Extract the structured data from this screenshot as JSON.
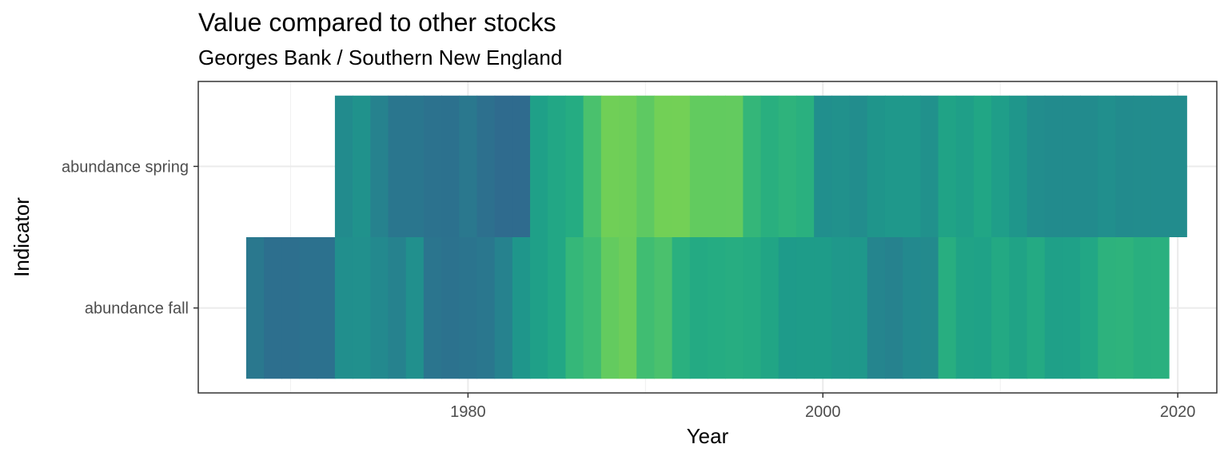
{
  "chart_data": {
    "type": "heatmap",
    "title": "Value compared to other stocks",
    "subtitle": "Georges Bank / Southern New England",
    "xlabel": "Year",
    "ylabel": "Indicator",
    "categories": [
      "abundance fall",
      "abundance spring"
    ],
    "xlim": [
      1964.8,
      2022.2
    ],
    "x_ticks": [
      1980,
      2000,
      2020
    ],
    "grid": true,
    "legend": "none",
    "series": [
      {
        "indicator": "abundance fall",
        "x": [
          1968,
          1969,
          1970,
          1971,
          1972,
          1973,
          1974,
          1975,
          1976,
          1977,
          1978,
          1979,
          1980,
          1981,
          1982,
          1983,
          1984,
          1985,
          1986,
          1987,
          1988,
          1989,
          1990,
          1991,
          1992,
          1993,
          1994,
          1995,
          1996,
          1997,
          1998,
          1999,
          2000,
          2001,
          2002,
          2003,
          2004,
          2005,
          2006,
          2007,
          2008,
          2009,
          2010,
          2011,
          2012,
          2013,
          2014,
          2015,
          2016,
          2017,
          2018,
          2019
        ],
        "colors": [
          "#2a788e",
          "#2d6f8e",
          "#2d6f8e",
          "#2c718e",
          "#2c718e",
          "#218f8d",
          "#21908d",
          "#23898e",
          "#26828e",
          "#21908d",
          "#2b758e",
          "#2c728e",
          "#2b748e",
          "#2a778e",
          "#26828e",
          "#1f968b",
          "#1fa088",
          "#22a785",
          "#35b779",
          "#3fbc73",
          "#63cb5f",
          "#6ccd5a",
          "#40bd72",
          "#4ac16d",
          "#2ab07f",
          "#24aa83",
          "#25ac82",
          "#27ad81",
          "#25ab82",
          "#21a585",
          "#1e9b8a",
          "#1e9c89",
          "#1e9c89",
          "#1f988b",
          "#1f988b",
          "#25858e",
          "#26828e",
          "#23898e",
          "#238a8d",
          "#28ae80",
          "#20a386",
          "#1fa287",
          "#23a983",
          "#20a386",
          "#24aa83",
          "#1fa088",
          "#1fa188",
          "#22a785",
          "#2db27d",
          "#2eb37c",
          "#29af7f",
          "#2ab07f"
        ]
      },
      {
        "indicator": "abundance spring",
        "x": [
          1973,
          1974,
          1975,
          1976,
          1977,
          1978,
          1979,
          1980,
          1981,
          1982,
          1983,
          1984,
          1985,
          1986,
          1987,
          1988,
          1989,
          1990,
          1991,
          1992,
          1993,
          1994,
          1995,
          1996,
          1997,
          1998,
          1999,
          2000,
          2001,
          2002,
          2003,
          2004,
          2005,
          2006,
          2007,
          2008,
          2009,
          2010,
          2011,
          2012,
          2013,
          2014,
          2015,
          2016,
          2017,
          2018,
          2019,
          2020
        ],
        "colors": [
          "#228b8d",
          "#20928c",
          "#26828e",
          "#2a768e",
          "#2a768e",
          "#2c728e",
          "#2c718e",
          "#2a788e",
          "#2d708e",
          "#2f6b8e",
          "#2f6b8e",
          "#1fa088",
          "#22a785",
          "#25ac82",
          "#4ac16d",
          "#70cf57",
          "#6ece58",
          "#5ec962",
          "#72d056",
          "#73d056",
          "#62cb5f",
          "#62cb5f",
          "#63cb5f",
          "#34b679",
          "#29af7f",
          "#2eb37c",
          "#2ab07f",
          "#218f8d",
          "#21918c",
          "#228d8d",
          "#1f958b",
          "#1f988b",
          "#1f988b",
          "#21918c",
          "#20a386",
          "#1f9f88",
          "#21a685",
          "#1f9e89",
          "#1f968b",
          "#228d8d",
          "#228b8d",
          "#228b8d",
          "#228b8d",
          "#218f8d",
          "#228b8d",
          "#228c8d",
          "#228c8d",
          "#228c8d"
        ]
      }
    ]
  }
}
